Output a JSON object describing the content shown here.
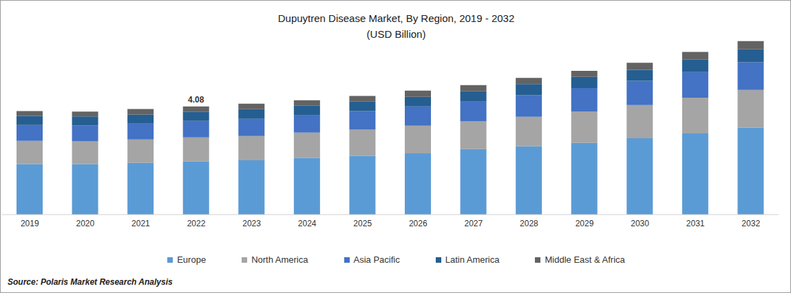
{
  "chart_data": {
    "type": "bar",
    "title": "Dupuytren Disease Market, By Region, 2019 - 2032",
    "subtitle": "(USD Billion)",
    "source": "Source: Polaris Market Research Analysis",
    "stacked": true,
    "grid": false,
    "tick_labels": "x",
    "legend": "bottom",
    "categories": [
      "2019",
      "2020",
      "2021",
      "2022",
      "2023",
      "2024",
      "2025",
      "2026",
      "2027",
      "2028",
      "2029",
      "2030",
      "2031",
      "2032"
    ],
    "ylim": [
      0,
      7
    ],
    "annotations": [
      {
        "category": "2022",
        "text": "4.08"
      }
    ],
    "series": [
      {
        "name": "Europe",
        "color": "#5b9bd5",
        "values": [
          1.9,
          1.9,
          1.95,
          2.0,
          2.05,
          2.13,
          2.21,
          2.31,
          2.47,
          2.57,
          2.7,
          2.88,
          3.06,
          3.27
        ]
      },
      {
        "name": "North America",
        "color": "#a5a5a5",
        "values": [
          0.88,
          0.86,
          0.88,
          0.91,
          0.91,
          0.96,
          0.99,
          1.04,
          1.04,
          1.12,
          1.19,
          1.25,
          1.35,
          1.43
        ]
      },
      {
        "name": "Asia Pacific",
        "color": "#4472c4",
        "values": [
          0.6,
          0.6,
          0.6,
          0.62,
          0.65,
          0.65,
          0.7,
          0.73,
          0.75,
          0.81,
          0.88,
          0.91,
          0.96,
          1.04
        ]
      },
      {
        "name": "Latin America",
        "color": "#255e91",
        "values": [
          0.34,
          0.34,
          0.34,
          0.34,
          0.36,
          0.36,
          0.36,
          0.36,
          0.39,
          0.42,
          0.42,
          0.42,
          0.47,
          0.49
        ]
      },
      {
        "name": "Middle East & Africa",
        "color": "#636363",
        "values": [
          0.18,
          0.18,
          0.21,
          0.21,
          0.21,
          0.21,
          0.21,
          0.23,
          0.23,
          0.23,
          0.23,
          0.26,
          0.29,
          0.31
        ]
      }
    ]
  }
}
